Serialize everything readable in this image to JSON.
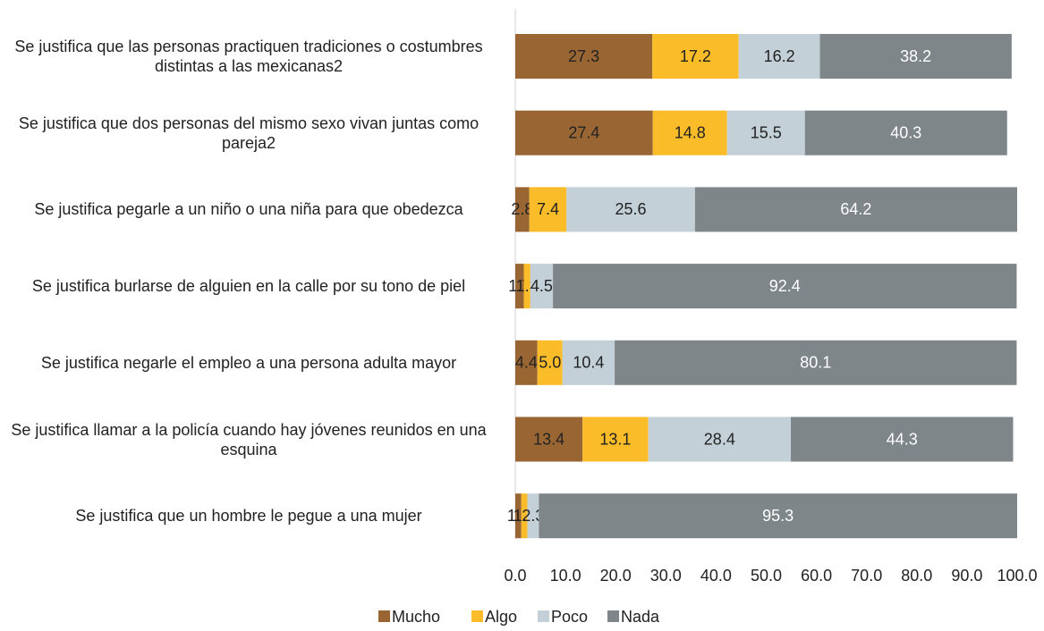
{
  "chart_data": {
    "type": "stacked-barh",
    "categories": [
      "Se justifica que las personas practiquen tradiciones o costumbres distintas a las mexicanas2",
      "Se justifica que dos personas del mismo sexo vivan juntas como pareja2",
      "Se justifica pegarle a un niño o una niña para que obedezca",
      "Se justifica burlarse de alguien en la calle por su tono de piel",
      "Se justifica negarle el empleo a una persona adulta mayor",
      "Se justifica llamar a la policía cuando hay jóvenes reunidos en una esquina",
      "Se justifica que un hombre le pegue a una mujer"
    ],
    "series": [
      {
        "name": "Mucho",
        "color": "#996633",
        "values": [
          27.3,
          27.4,
          2.8,
          1.7,
          4.4,
          13.4,
          1.2
        ]
      },
      {
        "name": "Algo",
        "color": "#fbbc2a",
        "values": [
          17.2,
          14.8,
          7.4,
          1.3,
          5.0,
          13.1,
          1.2
        ],
        "value_labels": [
          "17.2",
          "14.8",
          "7.4",
          "1.3",
          "5.0",
          "13.1",
          "1.2"
        ]
      },
      {
        "name": "Poco",
        "color": "#c3d0d8",
        "values": [
          16.2,
          15.5,
          25.6,
          4.5,
          10.4,
          28.4,
          2.3
        ]
      },
      {
        "name": "Nada",
        "color": "#7f8689",
        "values": [
          38.2,
          40.3,
          64.2,
          92.4,
          80.1,
          44.3,
          95.3
        ]
      }
    ],
    "xlim": [
      0,
      100
    ],
    "xticks": [
      {
        "value": 0,
        "label": "0.0"
      },
      {
        "value": 10,
        "label": "10.0"
      },
      {
        "value": 20,
        "label": "20.0"
      },
      {
        "value": 30,
        "label": "30.0"
      },
      {
        "value": 40,
        "label": "40.0"
      },
      {
        "value": 50,
        "label": "50.0"
      },
      {
        "value": 60,
        "label": "60.0"
      },
      {
        "value": 70,
        "label": "70.0"
      },
      {
        "value": 80,
        "label": "80.0"
      },
      {
        "value": 90,
        "label": "90.0"
      },
      {
        "value": 100,
        "label": "100.0"
      }
    ],
    "legend": "bottom"
  }
}
